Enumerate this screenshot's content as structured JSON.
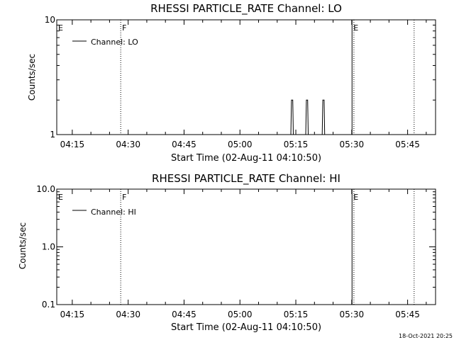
{
  "chart_data": [
    {
      "type": "line",
      "title": "RHESSI PARTICLE_RATE Channel: LO",
      "xlabel": "Start Time (02-Aug-11 04:10:50)",
      "ylabel": "Counts/sec",
      "yscale": "log",
      "ylim": [
        1,
        10
      ],
      "xlim": [
        "04:10:50",
        "05:52:30"
      ],
      "xticks": [
        "04:15",
        "04:30",
        "04:45",
        "05:00",
        "05:15",
        "05:30",
        "05:45"
      ],
      "xtick_minutes": [
        15,
        30,
        45,
        60,
        75,
        90,
        105
      ],
      "yticks": [
        {
          "label": "1",
          "value": 1
        },
        {
          "label": "10",
          "value": 10
        }
      ],
      "legend": "top-left",
      "series": [
        {
          "name": "Channel: LO",
          "points": [
            {
              "t": "05:13:40",
              "y": 1.0
            },
            {
              "t": "05:13:50",
              "y": 2.0
            },
            {
              "t": "05:14:10",
              "y": 2.0
            },
            {
              "t": "05:14:20",
              "y": 1.0
            },
            {
              "t": "05:17:40",
              "y": 1.0
            },
            {
              "t": "05:17:50",
              "y": 2.0
            },
            {
              "t": "05:18:10",
              "y": 2.0
            },
            {
              "t": "05:18:20",
              "y": 1.0
            },
            {
              "t": "05:22:05",
              "y": 1.0
            },
            {
              "t": "05:22:15",
              "y": 2.0
            },
            {
              "t": "05:22:35",
              "y": 2.0
            },
            {
              "t": "05:22:45",
              "y": 1.0
            }
          ]
        }
      ],
      "markers": [
        {
          "label": "E",
          "t": "04:10:50",
          "style": "solid"
        },
        {
          "label": "F",
          "t": "04:28:00",
          "style": "dotted"
        },
        {
          "label": "E",
          "t": "05:30:05",
          "style": "solid"
        },
        {
          "label": "",
          "t": "05:30:35",
          "style": "dotted"
        },
        {
          "label": "",
          "t": "05:46:45",
          "style": "dotted"
        }
      ]
    },
    {
      "type": "line",
      "title": "RHESSI PARTICLE_RATE Channel: HI",
      "xlabel": "Start Time (02-Aug-11 04:10:50)",
      "ylabel": "Counts/sec",
      "yscale": "log",
      "ylim": [
        0.1,
        10
      ],
      "xlim": [
        "04:10:50",
        "05:52:30"
      ],
      "xticks": [
        "04:15",
        "04:30",
        "04:45",
        "05:00",
        "05:15",
        "05:30",
        "05:45"
      ],
      "xtick_minutes": [
        15,
        30,
        45,
        60,
        75,
        90,
        105
      ],
      "yticks": [
        {
          "label": "0.1",
          "value": 0.1
        },
        {
          "label": "1.0",
          "value": 1
        },
        {
          "label": "10.0",
          "value": 10
        }
      ],
      "legend": "top-left",
      "series": [
        {
          "name": "Channel: HI",
          "points": []
        }
      ],
      "markers": [
        {
          "label": "E",
          "t": "04:10:50",
          "style": "solid"
        },
        {
          "label": "F",
          "t": "04:28:00",
          "style": "dotted"
        },
        {
          "label": "E",
          "t": "05:30:05",
          "style": "solid"
        },
        {
          "label": "",
          "t": "05:30:35",
          "style": "dotted"
        },
        {
          "label": "",
          "t": "05:46:45",
          "style": "dotted"
        }
      ]
    }
  ],
  "footer": {
    "timestamp": "18-Oct-2021 20:25"
  }
}
